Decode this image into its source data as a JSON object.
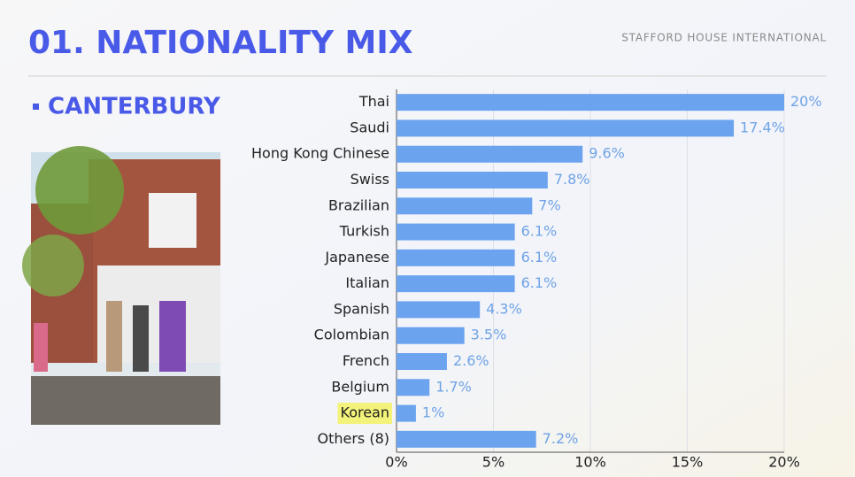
{
  "header": {
    "title": "01. NATIONALITY MIX",
    "brand": "STAFFORD HOUSE INTERNATIONAL",
    "subtitle": "CANTERBURY"
  },
  "chart_data": {
    "type": "barh",
    "categories": [
      "Thai",
      "Saudi",
      "Hong Kong Chinese",
      "Swiss",
      "Brazilian",
      "Turkish",
      "Japanese",
      "Italian",
      "Spanish",
      "Colombian",
      "French",
      "Belgium",
      "Korean",
      "Others (8)"
    ],
    "values": [
      20,
      17.4,
      9.6,
      7.8,
      7,
      6.1,
      6.1,
      6.1,
      4.3,
      3.5,
      2.6,
      1.7,
      1,
      7.2
    ],
    "value_labels": [
      "20%",
      "17.4%",
      "9.6%",
      "7.8%",
      "7%",
      "6.1%",
      "6.1%",
      "6.1%",
      "4.3%",
      "3.5%",
      "2.6%",
      "1.7%",
      "1%",
      "7.2%"
    ],
    "color": "#6ba3ef",
    "xlim": [
      0,
      20
    ],
    "xticks": [
      {
        "value": 0,
        "label": "0%"
      },
      {
        "value": 5,
        "label": "5%"
      },
      {
        "value": 10,
        "label": "10%"
      },
      {
        "value": 15,
        "label": "15%"
      },
      {
        "value": 20,
        "label": "20%"
      }
    ],
    "grid": true,
    "highlighted_category": 12,
    "highlight_color": "#f3f27a"
  }
}
